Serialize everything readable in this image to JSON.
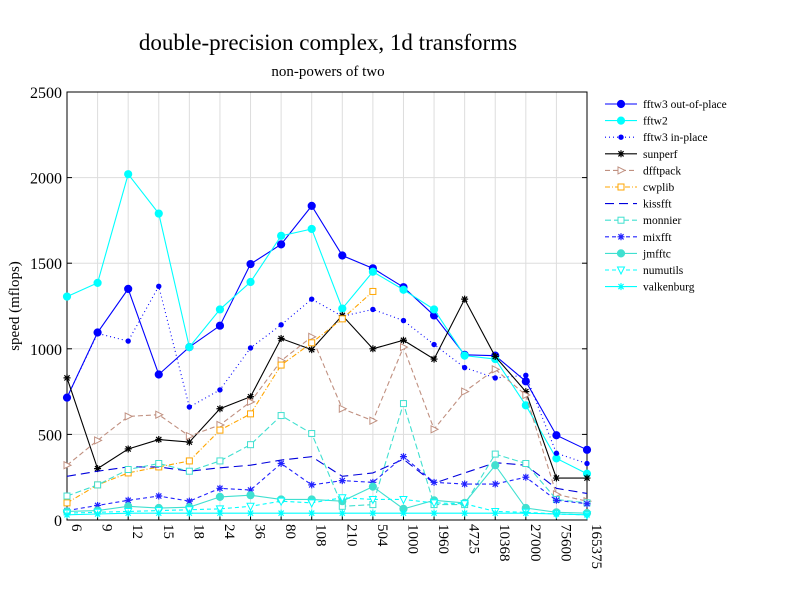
{
  "chart_data": {
    "type": "line",
    "title": "double-precision complex, 1d transforms",
    "subtitle": "non-powers of two",
    "xlabel": "",
    "ylabel": "speed (mflops)",
    "ylim": [
      0,
      2500
    ],
    "yticks": [
      0,
      500,
      1000,
      1500,
      2000,
      2500
    ],
    "grid": true,
    "legend_position": "right",
    "categories": [
      "6",
      "9",
      "12",
      "15",
      "18",
      "24",
      "36",
      "80",
      "108",
      "210",
      "504",
      "1000",
      "1960",
      "4725",
      "10368",
      "27000",
      "75600",
      "165375"
    ],
    "series": [
      {
        "name": "fftw3 out-of-place",
        "color": "#0000ff",
        "dash": "",
        "marker": "dot",
        "values": [
          715,
          1095,
          1350,
          850,
          1010,
          1135,
          1495,
          1610,
          1835,
          1545,
          1470,
          1360,
          1195,
          965,
          960,
          810,
          495,
          410
        ]
      },
      {
        "name": "fftw2",
        "color": "#00ffff",
        "dash": "",
        "marker": "dot",
        "values": [
          1305,
          1385,
          2020,
          1790,
          1010,
          1230,
          1390,
          1660,
          1700,
          1235,
          1450,
          1345,
          1230,
          960,
          940,
          670,
          360,
          270
        ]
      },
      {
        "name": "fftw3 in-place",
        "color": "#0000ff",
        "dash": "1,3",
        "marker": "smalldot",
        "values": [
          715,
          1090,
          1045,
          1365,
          660,
          760,
          1005,
          1140,
          1290,
          1190,
          1230,
          1165,
          1025,
          890,
          830,
          845,
          390,
          330
        ]
      },
      {
        "name": "sunperf",
        "color": "#000000",
        "dash": "",
        "marker": "star",
        "values": [
          830,
          300,
          415,
          470,
          455,
          650,
          720,
          1060,
          995,
          1195,
          1000,
          1050,
          940,
          1290,
          955,
          750,
          245,
          245
        ]
      },
      {
        "name": "dfftpack",
        "color": "#c09080",
        "dash": "5,3",
        "marker": "triangle-right",
        "values": [
          320,
          465,
          605,
          615,
          490,
          555,
          690,
          930,
          1070,
          650,
          580,
          1010,
          530,
          750,
          880,
          730,
          150,
          110
        ]
      },
      {
        "name": "cwplib",
        "color": "#ffa500",
        "dash": "5,2,1,2",
        "marker": "square",
        "values": [
          100,
          205,
          275,
          310,
          345,
          525,
          620,
          905,
          1035,
          1175,
          1335,
          null,
          null,
          null,
          null,
          null,
          null,
          null
        ]
      },
      {
        "name": "kissfft",
        "color": "#0000dd",
        "dash": "9,5",
        "marker": "none",
        "values": [
          255,
          285,
          310,
          310,
          285,
          305,
          320,
          350,
          370,
          255,
          275,
          355,
          215,
          275,
          335,
          320,
          185,
          155
        ]
      },
      {
        "name": "monnier",
        "color": "#40e0d0",
        "dash": "6,3",
        "marker": "square",
        "values": [
          140,
          205,
          295,
          330,
          285,
          345,
          440,
          610,
          505,
          80,
          90,
          680,
          90,
          90,
          385,
          330,
          120,
          100
        ]
      },
      {
        "name": "mixfft",
        "color": "#2222ff",
        "dash": "4,3",
        "marker": "star",
        "values": [
          55,
          85,
          115,
          140,
          110,
          185,
          175,
          330,
          205,
          230,
          220,
          370,
          220,
          210,
          210,
          250,
          115,
          95
        ]
      },
      {
        "name": "jmfftc",
        "color": "#40e0d0",
        "dash": "",
        "marker": "dot",
        "values": [
          50,
          55,
          80,
          70,
          75,
          135,
          145,
          120,
          120,
          110,
          195,
          65,
          115,
          100,
          320,
          70,
          45,
          40
        ]
      },
      {
        "name": "numutils",
        "color": "#00ffff",
        "dash": "4,3",
        "marker": "triangle-down",
        "values": [
          40,
          45,
          50,
          55,
          60,
          65,
          80,
          110,
          100,
          130,
          120,
          120,
          100,
          95,
          50,
          45,
          35,
          30
        ]
      },
      {
        "name": "valkenburg",
        "color": "#00ffff",
        "dash": "",
        "marker": "star",
        "values": [
          30,
          35,
          40,
          40,
          40,
          40,
          40,
          40,
          40,
          40,
          40,
          40,
          40,
          40,
          40,
          40,
          35,
          30
        ]
      }
    ]
  }
}
